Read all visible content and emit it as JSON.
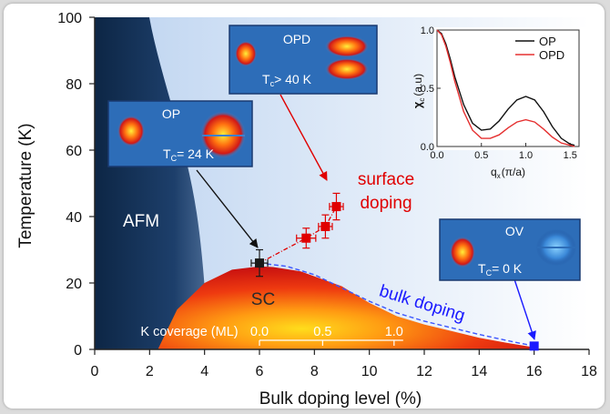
{
  "chart_data": {
    "type": "scatter",
    "xlabel": "Bulk doping level (%)",
    "ylabel": "Temperature (K)",
    "xlim": [
      0,
      18
    ],
    "ylim": [
      0,
      100
    ],
    "xticks": [
      "0",
      "2",
      "4",
      "6",
      "8",
      "10",
      "12",
      "14",
      "16",
      "18"
    ],
    "yticks": [
      "0",
      "20",
      "40",
      "60",
      "80",
      "100"
    ],
    "regions": {
      "afm_label": "AFM",
      "sc_label": "SC",
      "sc_dome": {
        "x": [
          2.3,
          3,
          4,
          5,
          6,
          6.5,
          7.5,
          9,
          10,
          11,
          12,
          13,
          14,
          15,
          16,
          16.1
        ],
        "y": [
          0,
          12,
          20,
          24,
          25,
          24.8,
          23.5,
          19,
          14,
          10,
          7.5,
          5.5,
          3.5,
          2,
          0.6,
          0
        ]
      }
    },
    "points": [
      {
        "name": "OP",
        "x": 6,
        "y": 26,
        "xerr": 0.3,
        "yerr": 4,
        "color": "#1a1a1a"
      },
      {
        "name": "OPD",
        "x": 7.7,
        "y": 33.5,
        "xerr": 0.35,
        "yerr": 3,
        "color": "#e00000"
      },
      {
        "name": "OPD",
        "x": 8.4,
        "y": 37,
        "xerr": 0.25,
        "yerr": 3.5,
        "color": "#e00000"
      },
      {
        "name": "OPD",
        "x": 8.8,
        "y": 43,
        "xerr": 0.25,
        "yerr": 4,
        "color": "#e00000"
      },
      {
        "name": "OV",
        "x": 16,
        "y": 1,
        "color": "#1a1aff"
      }
    ],
    "surface_doping_label": "surface doping",
    "bulk_doping_label": "bulk doping",
    "k_coverage": {
      "label": "K coverage (ML)",
      "ticks": [
        {
          "value": "0.0",
          "x": 6
        },
        {
          "value": "0.5",
          "x": 8.3
        },
        {
          "value": "1.0",
          "x": 10.9
        }
      ]
    },
    "insets": {
      "op": {
        "title": "OP",
        "tc": "T",
        "tc_sub": "C",
        "tc_value": "= 24 K"
      },
      "opd": {
        "title": "OPD",
        "tc": "T",
        "tc_sub": "c",
        "tc_value": "> 40 K"
      },
      "ov": {
        "title": "OV",
        "tc": "T",
        "tc_sub": "C",
        "tc_value": "= 0 K"
      }
    },
    "susceptibility_inset": {
      "type": "line",
      "ylabel": "χ",
      "ylabel_sub": "c",
      "ylabel_unit": "(a.u)",
      "xlabel": "q",
      "xlabel_sub": "x",
      "xlabel_unit": "(π/a)",
      "xlim": [
        0,
        1.6
      ],
      "ylim": [
        0,
        1.0
      ],
      "xticks": [
        "0.0",
        "0.5",
        "1.0",
        "1.5"
      ],
      "yticks": [
        "0.0",
        "0.5",
        "1.0"
      ],
      "series": [
        {
          "name": "OP",
          "color": "#111111",
          "x": [
            0,
            0.05,
            0.1,
            0.15,
            0.2,
            0.3,
            0.4,
            0.5,
            0.6,
            0.7,
            0.8,
            0.9,
            1.0,
            1.1,
            1.2,
            1.3,
            1.4,
            1.5,
            1.55
          ],
          "y": [
            1.0,
            0.97,
            0.88,
            0.75,
            0.6,
            0.36,
            0.2,
            0.14,
            0.15,
            0.22,
            0.32,
            0.4,
            0.43,
            0.4,
            0.3,
            0.17,
            0.07,
            0.02,
            0.01
          ]
        },
        {
          "name": "OPD",
          "color": "#e53030",
          "x": [
            0,
            0.05,
            0.1,
            0.15,
            0.2,
            0.3,
            0.4,
            0.5,
            0.6,
            0.7,
            0.8,
            0.9,
            1.0,
            1.1,
            1.2,
            1.3,
            1.4,
            1.5,
            1.55
          ],
          "y": [
            1.0,
            0.96,
            0.86,
            0.72,
            0.56,
            0.3,
            0.14,
            0.07,
            0.07,
            0.1,
            0.16,
            0.21,
            0.23,
            0.21,
            0.15,
            0.08,
            0.03,
            0.01,
            0.0
          ]
        }
      ]
    }
  }
}
